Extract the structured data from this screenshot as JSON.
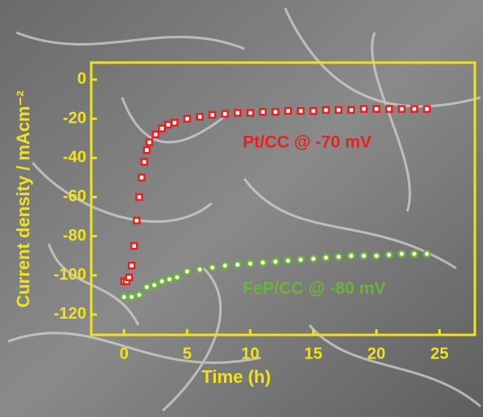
{
  "chart_data": {
    "type": "scatter",
    "xlabel": "Time (h)",
    "ylabel": "Current density / mAcm⁻²",
    "xlim": [
      -2.6,
      27.8
    ],
    "ylim": [
      -130.4,
      8.7
    ],
    "xticks": [
      0,
      5,
      10,
      15,
      20,
      25
    ],
    "yticks": [
      0,
      -20,
      -40,
      -60,
      -80,
      -100,
      -120
    ],
    "axis_color": "#f0e21e",
    "series": [
      {
        "name": "Pt/CC @ -70 mV",
        "color": "#e8201f",
        "marker": "square",
        "x": [
          0,
          0.2,
          0.4,
          0.6,
          0.8,
          1.0,
          1.2,
          1.4,
          1.6,
          1.8,
          2.0,
          2.5,
          3,
          3.5,
          4,
          5,
          6,
          7,
          8,
          9,
          10,
          11,
          12,
          13,
          14,
          15,
          16,
          17,
          18,
          19,
          20,
          21,
          22,
          23,
          24
        ],
        "values": [
          -103,
          -103,
          -101,
          -95,
          -85,
          -72,
          -60,
          -50,
          -42,
          -36,
          -32,
          -28,
          -25,
          -23,
          -22,
          -20,
          -19,
          -18,
          -17.5,
          -17,
          -17,
          -16.5,
          -16.5,
          -16,
          -16,
          -16,
          -15.5,
          -15.5,
          -15.5,
          -15,
          -15,
          -15,
          -15,
          -15,
          -15
        ]
      },
      {
        "name": "FeP/CC @ -80 mV",
        "color": "#6ab536",
        "marker": "circle",
        "x": [
          0,
          0.6,
          1.2,
          1.8,
          2.4,
          3,
          3.6,
          4.2,
          5,
          6,
          7,
          8,
          9,
          10,
          11,
          12,
          13,
          14,
          15,
          16,
          17,
          18,
          19,
          20,
          21,
          22,
          23,
          24
        ],
        "values": [
          -111,
          -111,
          -110,
          -106,
          -105,
          -103,
          -102,
          -101,
          -98,
          -97,
          -96,
          -95,
          -94.5,
          -94,
          -93.5,
          -93,
          -92.5,
          -92,
          -91.5,
          -91,
          -90.5,
          -90,
          -90,
          -90,
          -89.5,
          -89,
          -89,
          -89
        ]
      }
    ]
  }
}
